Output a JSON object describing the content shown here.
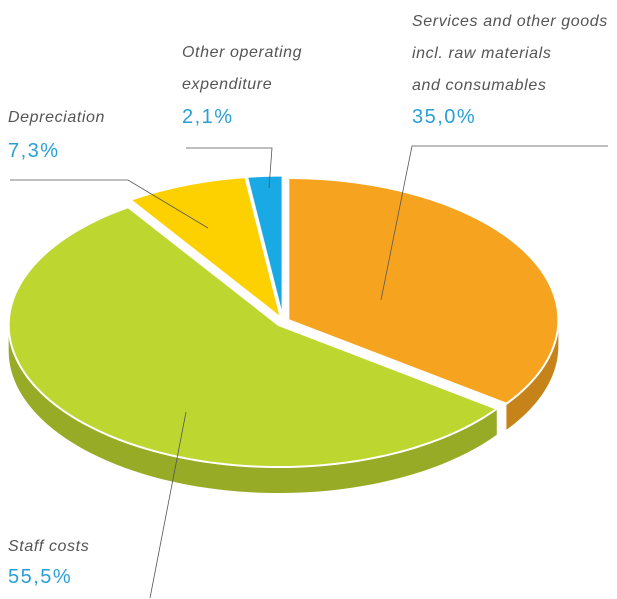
{
  "chart_data": {
    "type": "pie",
    "categories": [
      "Services and other goods\nincl. raw materials\nand consumables",
      "Staff costs",
      "Depreciation",
      "Other operating\nexpenditure"
    ],
    "values": [
      35.0,
      55.5,
      7.3,
      2.1
    ],
    "value_labels": [
      "35,0%",
      "55,5%",
      "7,3%",
      "2,1%"
    ],
    "colors": [
      "#f6a41f",
      "#bed630",
      "#fdd000",
      "#19a9e5"
    ]
  }
}
